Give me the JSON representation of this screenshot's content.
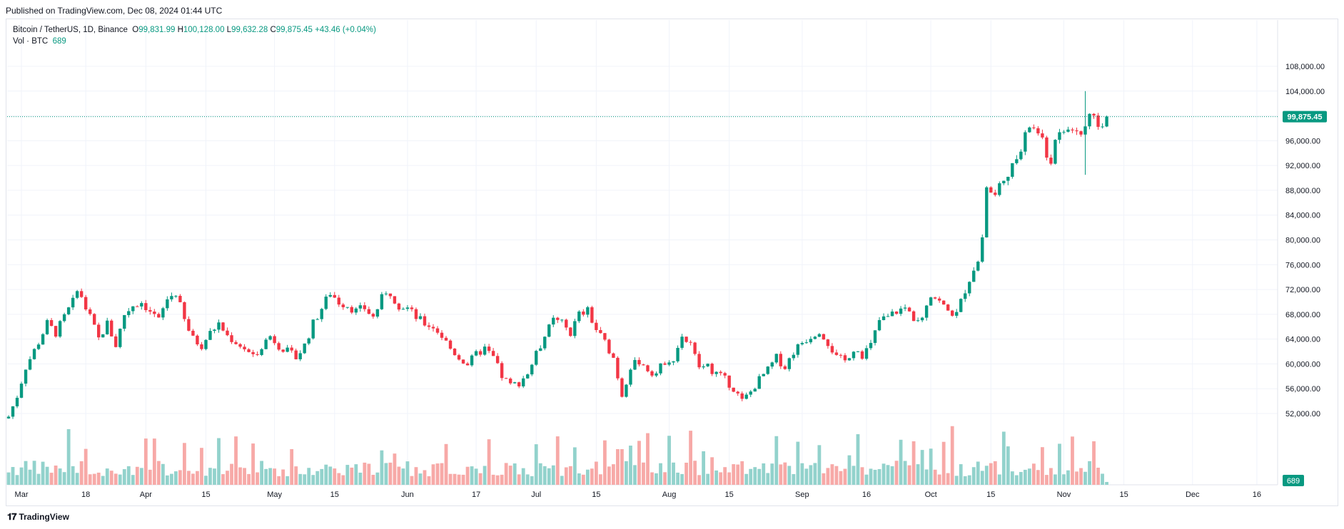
{
  "published": "Published on TradingView.com, Dec 08, 2024 01:44 UTC",
  "legend": {
    "symbol": "Bitcoin / TetherUS, 1D, Binance",
    "o_label": "O",
    "o_value": "99,831.99",
    "h_label": "H",
    "h_value": "100,128.00",
    "l_label": "L",
    "l_value": "99,632.28",
    "c_label": "C",
    "c_value": "99,875.45",
    "change": "+43.46 (+0.04%)",
    "vol_label": "Vol · BTC",
    "vol_value": "689"
  },
  "watermark": "TradingView",
  "colors": {
    "up": "#089981",
    "down": "#f23645",
    "vol_up": "#92d2cc",
    "vol_down": "#f7a9a7"
  },
  "chart_data": {
    "type": "candlestick",
    "title": "",
    "xlabel": "",
    "ylabel": "",
    "ylim": [
      50500,
      110500
    ],
    "y_ticks": [
      52000,
      56000,
      60000,
      64000,
      68000,
      72000,
      76000,
      80000,
      84000,
      88000,
      92000,
      96000,
      100000,
      104000,
      108000
    ],
    "y_tick_labels": [
      "52,000.00",
      "56,000.00",
      "60,000.00",
      "64,000.00",
      "68,000.00",
      "72,000.00",
      "76,000.00",
      "80,000.00",
      "84,000.00",
      "88,000.00",
      "92,000.00",
      "96,000.00",
      "100,000.00",
      "104,000.00",
      "108,000.00"
    ],
    "x_tick_labels": [
      {
        "label": "Mar",
        "day": 3
      },
      {
        "label": "18",
        "day": 18
      },
      {
        "label": "Apr",
        "day": 32
      },
      {
        "label": "15",
        "day": 46
      },
      {
        "label": "May",
        "day": 62
      },
      {
        "label": "15",
        "day": 76
      },
      {
        "label": "Jun",
        "day": 93
      },
      {
        "label": "17",
        "day": 109
      },
      {
        "label": "Jul",
        "day": 123
      },
      {
        "label": "15",
        "day": 137
      },
      {
        "label": "Aug",
        "day": 154
      },
      {
        "label": "15",
        "day": 168
      },
      {
        "label": "Sep",
        "day": 185
      },
      {
        "label": "16",
        "day": 200
      },
      {
        "label": "Oct",
        "day": 215
      },
      {
        "label": "15",
        "day": 229
      },
      {
        "label": "Nov",
        "day": 246
      },
      {
        "label": "15",
        "day": 260
      },
      {
        "label": "Dec",
        "day": 276
      },
      {
        "label": "16",
        "day": 291
      }
    ],
    "last_price": 99875.45,
    "last_price_label": "99,875.45",
    "last_volume_label": "689",
    "anchors": [
      [
        0,
        51500
      ],
      [
        2,
        54800
      ],
      [
        4,
        59500
      ],
      [
        7,
        63500
      ],
      [
        9,
        66500
      ],
      [
        11,
        65000
      ],
      [
        13,
        67500
      ],
      [
        15,
        70000
      ],
      [
        16,
        72500
      ],
      [
        17,
        70500
      ],
      [
        19,
        67500
      ],
      [
        21,
        64000
      ],
      [
        23,
        66500
      ],
      [
        25,
        63000
      ],
      [
        27,
        68000
      ],
      [
        29,
        69500
      ],
      [
        31,
        70000
      ],
      [
        33,
        68500
      ],
      [
        35,
        67000
      ],
      [
        37,
        70500
      ],
      [
        39,
        71500
      ],
      [
        41,
        67000
      ],
      [
        43,
        64000
      ],
      [
        45,
        63000
      ],
      [
        47,
        65000
      ],
      [
        49,
        66500
      ],
      [
        51,
        64500
      ],
      [
        53,
        63500
      ],
      [
        55,
        62500
      ],
      [
        57,
        61000
      ],
      [
        59,
        63000
      ],
      [
        61,
        64500
      ],
      [
        63,
        63000
      ],
      [
        65,
        62000
      ],
      [
        67,
        61000
      ],
      [
        69,
        63000
      ],
      [
        71,
        66500
      ],
      [
        73,
        69000
      ],
      [
        75,
        71500
      ],
      [
        77,
        70000
      ],
      [
        79,
        69500
      ],
      [
        81,
        68500
      ],
      [
        83,
        69000
      ],
      [
        85,
        67500
      ],
      [
        87,
        70500
      ],
      [
        89,
        71500
      ],
      [
        91,
        69500
      ],
      [
        93,
        69000
      ],
      [
        95,
        67500
      ],
      [
        97,
        66500
      ],
      [
        99,
        66000
      ],
      [
        101,
        64500
      ],
      [
        103,
        62500
      ],
      [
        105,
        61000
      ],
      [
        107,
        60000
      ],
      [
        109,
        61500
      ],
      [
        111,
        62500
      ],
      [
        113,
        61000
      ],
      [
        115,
        58000
      ],
      [
        117,
        56500
      ],
      [
        119,
        57000
      ],
      [
        121,
        58500
      ],
      [
        123,
        61500
      ],
      [
        125,
        64500
      ],
      [
        127,
        67000
      ],
      [
        129,
        66500
      ],
      [
        131,
        65000
      ],
      [
        133,
        68000
      ],
      [
        135,
        68500
      ],
      [
        137,
        65500
      ],
      [
        139,
        63500
      ],
      [
        141,
        61000
      ],
      [
        142,
        58000
      ],
      [
        143,
        55000
      ],
      [
        145,
        59500
      ],
      [
        147,
        60500
      ],
      [
        149,
        59000
      ],
      [
        151,
        58500
      ],
      [
        153,
        60500
      ],
      [
        155,
        61000
      ],
      [
        157,
        64500
      ],
      [
        159,
        63000
      ],
      [
        161,
        59500
      ],
      [
        163,
        59500
      ],
      [
        165,
        58500
      ],
      [
        167,
        57500
      ],
      [
        169,
        56000
      ],
      [
        171,
        54000
      ],
      [
        173,
        55500
      ],
      [
        175,
        57500
      ],
      [
        177,
        59000
      ],
      [
        179,
        61000
      ],
      [
        181,
        59500
      ],
      [
        183,
        62000
      ],
      [
        185,
        63500
      ],
      [
        187,
        64500
      ],
      [
        189,
        65500
      ],
      [
        191,
        63500
      ],
      [
        193,
        61000
      ],
      [
        195,
        60500
      ],
      [
        197,
        62500
      ],
      [
        199,
        61500
      ],
      [
        201,
        63000
      ],
      [
        203,
        67000
      ],
      [
        205,
        67500
      ],
      [
        207,
        68500
      ],
      [
        209,
        69000
      ],
      [
        211,
        67500
      ],
      [
        213,
        68000
      ],
      [
        215,
        71500
      ],
      [
        217,
        70000
      ],
      [
        219,
        68500
      ],
      [
        221,
        68000
      ],
      [
        223,
        72000
      ],
      [
        225,
        75500
      ],
      [
        226,
        76500
      ],
      [
        227,
        80500
      ],
      [
        228,
        88500
      ],
      [
        230,
        87000
      ],
      [
        232,
        90500
      ],
      [
        234,
        91500
      ],
      [
        236,
        94500
      ],
      [
        238,
        98500
      ],
      [
        240,
        97500
      ],
      [
        242,
        93500
      ],
      [
        243,
        93000
      ],
      [
        244,
        95500
      ],
      [
        246,
        97500
      ],
      [
        248,
        98000
      ],
      [
        250,
        97000
      ],
      [
        252,
        99500
      ],
      [
        254,
        98500
      ],
      [
        256,
        99875
      ]
    ],
    "highlights": [
      {
        "day": 251,
        "high": 104000,
        "low": 90500
      }
    ]
  }
}
